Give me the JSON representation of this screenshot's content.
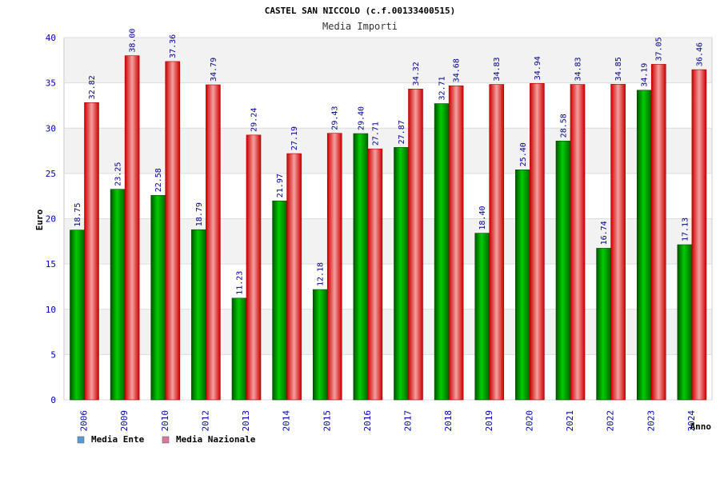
{
  "chart_data": {
    "type": "bar",
    "title": "CASTEL SAN NICCOLO (c.f.00133400515)",
    "subtitle": "Media Importi",
    "xlabel": "Anno",
    "ylabel": "Euro",
    "ylim": [
      0,
      40
    ],
    "yticks": [
      "0",
      "5",
      "10",
      "15",
      "20",
      "25",
      "30",
      "35",
      "40"
    ],
    "grid": true,
    "legend_position": "bottom-left",
    "categories": [
      "2006",
      "2009",
      "2010",
      "2012",
      "2013",
      "2014",
      "2015",
      "2016",
      "2017",
      "2018",
      "2019",
      "2020",
      "2021",
      "2022",
      "2023",
      "2024"
    ],
    "series": [
      {
        "name": "Media Ente",
        "legend_color": "#5b9bd5",
        "bar_color": "#00aa00",
        "values": [
          18.75,
          23.25,
          22.58,
          18.79,
          11.23,
          21.97,
          12.18,
          29.4,
          27.87,
          32.71,
          18.4,
          25.4,
          28.58,
          16.74,
          34.19,
          17.13
        ],
        "labels": [
          "18.75",
          "23.25",
          "22.58",
          "18.79",
          "11.23",
          "21.97",
          "12.18",
          "29.40",
          "27.87",
          "32.71",
          "18.40",
          "25.40",
          "28.58",
          "16.74",
          "34.19",
          "17.13"
        ]
      },
      {
        "name": "Media Nazionale",
        "legend_color": "#d87aa0",
        "bar_color": "#ee0000",
        "values": [
          32.82,
          38.0,
          37.36,
          34.79,
          29.24,
          27.19,
          29.43,
          27.71,
          34.32,
          34.68,
          34.83,
          34.94,
          34.83,
          34.85,
          37.05,
          36.46
        ],
        "labels": [
          "32.82",
          "38.00",
          "37.36",
          "34.79",
          "29.24",
          "27.19",
          "29.43",
          "27.71",
          "34.32",
          "34.68",
          "34.83",
          "34.94",
          "34.83",
          "34.85",
          "37.05",
          "36.46"
        ]
      }
    ]
  }
}
